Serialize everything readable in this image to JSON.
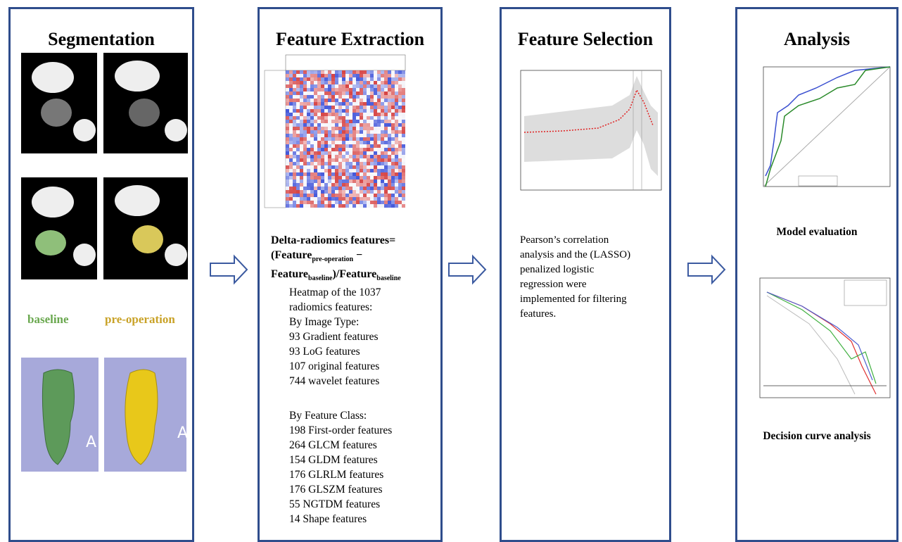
{
  "panels": [
    {
      "title": "Segmentation",
      "labels": [
        "baseline",
        "pre-operation"
      ]
    },
    {
      "title": "Feature Extraction",
      "formula": {
        "line1": "Delta-radiomics features=",
        "open": "(Feature",
        "sub1": "pre-operation",
        "minus": " −",
        "feat2": "Feature",
        "sub2": "baseline",
        "div": ")/Feature",
        "sub3": "baseline"
      },
      "lines": [
        "Heatmap of the 1037",
        "radiomics features:",
        "By Image Type:",
        "93 Gradient features",
        "93 LoG features",
        "107 original features",
        "744 wavelet features"
      ],
      "lines2": [
        "By Feature Class:",
        "198 First-order features",
        "264 GLCM features",
        "154 GLDM features",
        "176 GLRLM features",
        "176 GLSZM features",
        "55 NGTDM features",
        "14 Shape features"
      ]
    },
    {
      "title": "Feature Selection",
      "lines": [
        "Pearson’s correlation",
        "analysis and the (LASSO)",
        "penalized logistic",
        "regression were",
        "implemented for filtering",
        "features."
      ]
    },
    {
      "title": "Analysis",
      "captions": [
        "Model evaluation",
        "Decision curve analysis"
      ]
    }
  ]
}
